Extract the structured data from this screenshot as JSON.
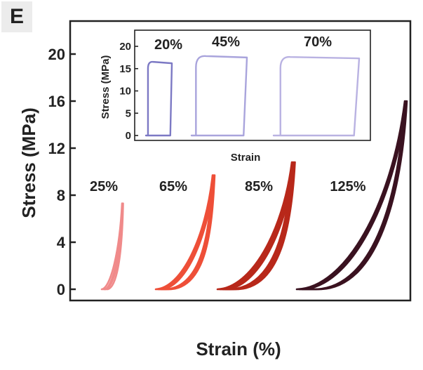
{
  "panel_label": "E",
  "chart_data": [
    {
      "type": "line",
      "title": "",
      "xlabel": "Strain (%)",
      "ylabel": "Stress (MPa)",
      "ylim": [
        0,
        22
      ],
      "yticks": [
        "0",
        "4",
        "8",
        "12",
        "16",
        "20"
      ],
      "grid": false,
      "series": [
        {
          "name": "25%",
          "color": "#f08a8a",
          "peak_stress": 7.3
        },
        {
          "name": "65%",
          "color": "#ee4f38",
          "peak_stress": 9.7
        },
        {
          "name": "85%",
          "color": "#b8281a",
          "peak_stress": 10.8
        },
        {
          "name": "125%",
          "color": "#3a1220",
          "peak_stress": 16.0
        }
      ]
    },
    {
      "type": "line",
      "title": "",
      "xlabel": "Strain",
      "ylabel": "Stress (MPa)",
      "ylim": [
        0,
        22
      ],
      "yticks": [
        "0",
        "5",
        "10",
        "15",
        "20"
      ],
      "grid": false,
      "series": [
        {
          "name": "20%",
          "color": "#7c79c4",
          "plateau_stress": 16.2
        },
        {
          "name": "45%",
          "color": "#a9a4dc",
          "plateau_stress": 17.5
        },
        {
          "name": "70%",
          "color": "#b9b2e2",
          "plateau_stress": 17.3
        }
      ]
    }
  ]
}
